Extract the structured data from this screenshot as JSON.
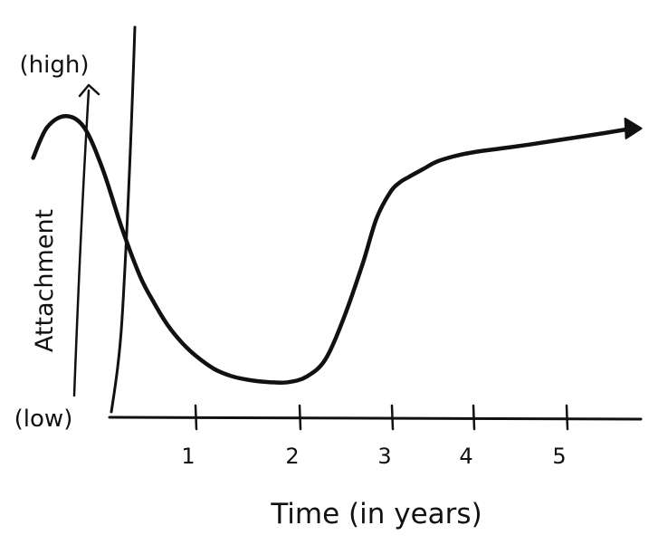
{
  "chart_data": {
    "type": "line",
    "title": "",
    "xlabel": "Time (in years)",
    "ylabel": "Attachment",
    "y_high_label": "(high)",
    "y_low_label": "(low)",
    "x_ticks": [
      "1",
      "2",
      "3",
      "4",
      "5"
    ],
    "xlim": [
      -0.8,
      5.7
    ],
    "ylim": [
      0,
      10
    ],
    "grid": false,
    "legend": "none",
    "ink_color": "#111111",
    "series": [
      {
        "x": [
          -0.75,
          -0.6,
          -0.4,
          -0.2,
          0.0,
          0.2,
          0.4,
          0.55,
          0.7,
          0.85,
          1.0,
          1.2,
          1.4,
          1.6,
          1.8,
          2.0,
          2.2,
          2.4,
          2.6,
          2.8,
          2.95,
          3.1,
          3.2,
          3.3,
          3.45,
          3.6,
          3.8,
          4.0,
          4.3,
          4.6,
          5.0,
          5.4,
          5.65
        ],
        "values": [
          6.8,
          7.6,
          7.9,
          7.6,
          6.5,
          5.0,
          3.7,
          3.0,
          2.4,
          1.95,
          1.6,
          1.25,
          1.05,
          0.95,
          0.9,
          0.9,
          1.05,
          1.5,
          2.6,
          4.0,
          5.2,
          5.9,
          6.15,
          6.3,
          6.5,
          6.7,
          6.85,
          6.95,
          7.05,
          7.15,
          7.3,
          7.45,
          7.55
        ]
      }
    ]
  }
}
